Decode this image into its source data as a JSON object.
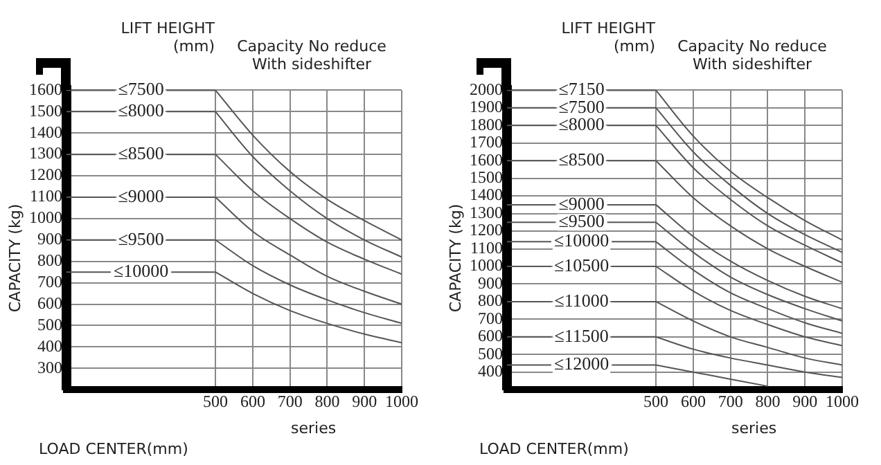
{
  "chart_data": [
    {
      "type": "line",
      "legend_title": "LIFT HEIGHT (mm)",
      "subtitle": "Capacity No reduce With sideshifter",
      "ylabel": "CAPACITY (kg)",
      "xlabel": "LOAD CENTER(mm)",
      "annotations": [
        "series"
      ],
      "x": [
        500,
        600,
        700,
        800,
        900,
        1000
      ],
      "xlim": [
        100,
        1000
      ],
      "xticks": [
        500,
        600,
        700,
        800,
        900,
        1000
      ],
      "ylim": [
        200,
        1600
      ],
      "yticks": [
        300,
        400,
        500,
        600,
        700,
        800,
        900,
        1000,
        1100,
        1200,
        1300,
        1400,
        1500,
        1600
      ],
      "grid": true,
      "legend": "left",
      "marker": "none",
      "line_style": "solid",
      "series": [
        {
          "name": "≤7500",
          "color": "#555555",
          "values": [
            1600,
            1390,
            1220,
            1090,
            990,
            900
          ]
        },
        {
          "name": "≤8000",
          "color": "#555555",
          "values": [
            1500,
            1290,
            1130,
            1000,
            900,
            820
          ]
        },
        {
          "name": "≤8500",
          "color": "#555555",
          "values": [
            1300,
            1130,
            1000,
            890,
            810,
            740
          ]
        },
        {
          "name": "≤9000",
          "color": "#555555",
          "values": [
            1100,
            940,
            830,
            730,
            660,
            600
          ]
        },
        {
          "name": "≤9500",
          "color": "#555555",
          "values": [
            900,
            780,
            690,
            620,
            560,
            510
          ]
        },
        {
          "name": "≤10000",
          "color": "#555555",
          "values": [
            750,
            650,
            570,
            510,
            460,
            420
          ]
        }
      ]
    },
    {
      "type": "line",
      "legend_title": "LIFT HEIGHT (mm)",
      "subtitle": "Capacity No reduce With sideshifter",
      "ylabel": "CAPACITY (kg)",
      "xlabel": "LOAD CENTER(mm)",
      "annotations": [
        "series"
      ],
      "x": [
        500,
        600,
        700,
        800,
        900,
        1000
      ],
      "xlim": [
        100,
        1000
      ],
      "xticks": [
        500,
        600,
        700,
        800,
        900,
        1000
      ],
      "ylim": [
        300,
        2000
      ],
      "yticks": [
        400,
        500,
        600,
        700,
        800,
        900,
        1000,
        1100,
        1200,
        1300,
        1400,
        1500,
        1600,
        1700,
        1800,
        1900,
        2000
      ],
      "grid": true,
      "legend": "left",
      "marker": "none",
      "line_style": "solid",
      "series": [
        {
          "name": "≤7150",
          "color": "#555555",
          "values": [
            2000,
            1740,
            1540,
            1390,
            1260,
            1150
          ]
        },
        {
          "name": "≤7500",
          "color": "#555555",
          "values": [
            1900,
            1650,
            1460,
            1300,
            1180,
            1080
          ]
        },
        {
          "name": "≤8000",
          "color": "#555555",
          "values": [
            1800,
            1560,
            1380,
            1230,
            1120,
            1020
          ]
        },
        {
          "name": "≤8500",
          "color": "#555555",
          "values": [
            1600,
            1390,
            1230,
            1100,
            1000,
            910
          ]
        },
        {
          "name": "≤9000",
          "color": "#555555",
          "values": [
            1350,
            1170,
            1030,
            920,
            830,
            760
          ]
        },
        {
          "name": "≤9500",
          "color": "#555555",
          "values": [
            1250,
            1080,
            940,
            840,
            760,
            690
          ]
        },
        {
          "name": "≤10000",
          "color": "#555555",
          "values": [
            1140,
            980,
            850,
            760,
            680,
            620
          ]
        },
        {
          "name": "≤10500",
          "color": "#555555",
          "values": [
            1000,
            860,
            750,
            670,
            600,
            550
          ]
        },
        {
          "name": "≤11000",
          "color": "#555555",
          "values": [
            800,
            690,
            600,
            540,
            480,
            440
          ]
        },
        {
          "name": "≤11500",
          "color": "#555555",
          "values": [
            600,
            530,
            480,
            440,
            400,
            370
          ]
        },
        {
          "name": "≤12000",
          "color": "#555555",
          "values": [
            440,
            400,
            360,
            320,
            null,
            null
          ]
        }
      ]
    }
  ]
}
